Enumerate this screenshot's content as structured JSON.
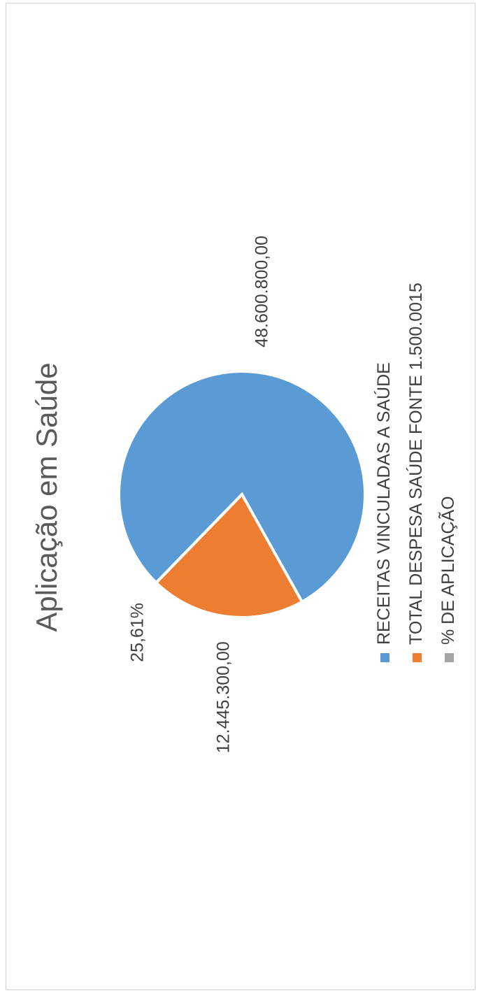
{
  "chart_data": {
    "type": "pie",
    "title": "Aplicação em Saúde",
    "series": [
      {
        "name": "RECEITAS VINCULADAS A SAÚDE",
        "value": 48600800.0,
        "label": "48.600.800,00",
        "color": "#5B9BD5"
      },
      {
        "name": "TOTAL DESPESA SAÚDE FONTE 1.500.0015",
        "value": 12445300.0,
        "label": "12.445.300,00",
        "color": "#ED7D31"
      },
      {
        "name": "% DE APLICAÇÃO",
        "value": 25.61,
        "label": "25,61%",
        "color": "#A5A5A5"
      }
    ],
    "legend_position": "bottom",
    "orientation": "rotated 90 degrees counter-clockwise"
  }
}
